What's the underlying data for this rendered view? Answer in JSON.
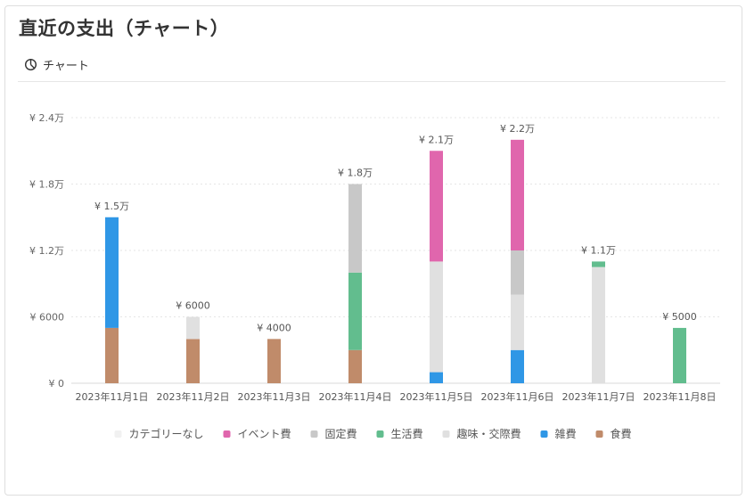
{
  "page": {
    "title": "直近の支出（チャート）",
    "tab_label": "チャート",
    "tab_icon": "pie-chart-icon"
  },
  "chart_data": {
    "type": "bar",
    "stacked": true,
    "categories": [
      "2023年11月1日",
      "2023年11月2日",
      "2023年11月3日",
      "2023年11月4日",
      "2023年11月5日",
      "2023年11月6日",
      "2023年11月7日",
      "2023年11月8日"
    ],
    "ylim": [
      0,
      24000
    ],
    "y_ticks": [
      0,
      6000,
      12000,
      18000,
      24000
    ],
    "y_tick_labels": [
      "¥ 0",
      "¥ 6000",
      "¥ 1.2万",
      "¥ 1.8万",
      "¥ 2.4万"
    ],
    "total_labels": [
      "¥ 1.5万",
      "¥ 6000",
      "¥ 4000",
      "¥ 1.8万",
      "¥ 2.1万",
      "¥ 2.2万",
      "¥ 1.1万",
      "¥ 5000"
    ],
    "grid": true,
    "legend_position": "bottom",
    "series": [
      {
        "name": "カテゴリーなし",
        "color": "#f1f1f1",
        "values": [
          0,
          0,
          0,
          0,
          0,
          0,
          0,
          0
        ]
      },
      {
        "name": "イベント費",
        "color": "#e066ad",
        "values": [
          0,
          0,
          0,
          0,
          10000,
          10000,
          0,
          0
        ]
      },
      {
        "name": "固定費",
        "color": "#c8c8c8",
        "values": [
          0,
          0,
          0,
          8000,
          0,
          4000,
          0,
          0
        ]
      },
      {
        "name": "生活費",
        "color": "#62bd8e",
        "values": [
          0,
          0,
          0,
          7000,
          0,
          0,
          500,
          5000
        ]
      },
      {
        "name": "趣味・交際費",
        "color": "#e0e0e0",
        "values": [
          0,
          2000,
          0,
          0,
          10000,
          5000,
          10500,
          0
        ]
      },
      {
        "name": "雑費",
        "color": "#2f97e6",
        "values": [
          10000,
          0,
          0,
          0,
          1000,
          3000,
          0,
          0
        ]
      },
      {
        "name": "食費",
        "color": "#c08b6a",
        "values": [
          5000,
          4000,
          4000,
          3000,
          0,
          0,
          0,
          0
        ]
      }
    ]
  }
}
